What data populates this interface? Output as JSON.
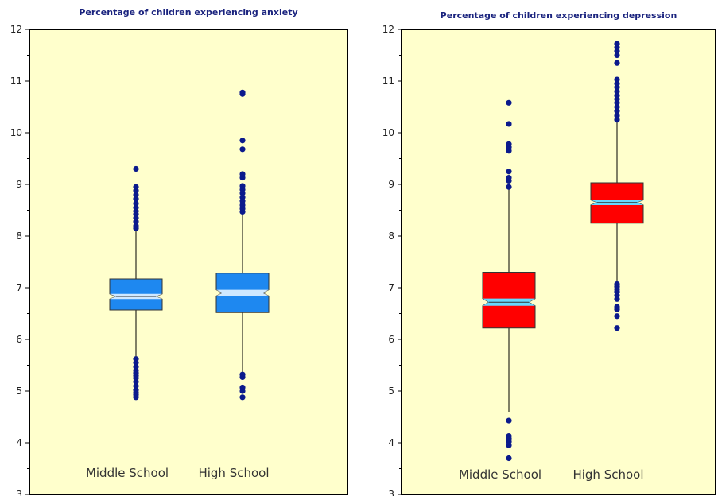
{
  "chart_data": [
    {
      "type": "boxplot",
      "title": "Percentage of children experiencing anxiety",
      "ylim": [
        3,
        12
      ],
      "y_ticks": [
        3,
        4,
        5,
        6,
        7,
        8,
        9,
        10,
        11,
        12
      ],
      "grid": false,
      "plot_background": "#ffffcc",
      "box_color": "#1e88f0",
      "notch_color": "#cfe8ff",
      "categories": [
        "Middle School",
        "High School"
      ],
      "boxes": [
        {
          "name": "Middle School",
          "q1": 6.57,
          "median": 6.83,
          "q3": 7.17,
          "notch_low": 6.78,
          "notch_high": 6.88,
          "whisker_low": 5.65,
          "whisker_high": 8.15,
          "outliers": [
            4.88,
            4.93,
            4.97,
            5.02,
            5.1,
            5.18,
            5.25,
            5.3,
            5.35,
            5.4,
            5.47,
            5.55,
            5.62,
            8.15,
            8.2,
            8.28,
            8.35,
            8.42,
            8.48,
            8.55,
            8.63,
            8.72,
            8.8,
            8.88,
            8.95,
            9.3
          ]
        },
        {
          "name": "High School",
          "q1": 6.52,
          "median": 6.9,
          "q3": 7.28,
          "notch_low": 6.84,
          "notch_high": 6.96,
          "whisker_low": 5.35,
          "whisker_high": 8.45,
          "outliers": [
            4.88,
            5.0,
            5.07,
            5.27,
            5.32,
            8.47,
            8.53,
            8.6,
            8.68,
            8.75,
            8.83,
            8.9,
            8.97,
            9.13,
            9.2,
            9.68,
            9.85,
            10.75,
            10.78
          ]
        }
      ]
    },
    {
      "type": "boxplot",
      "title": "Percentage of children experiencing depression",
      "ylim": [
        3,
        12
      ],
      "y_ticks": [
        3,
        4,
        5,
        6,
        7,
        8,
        9,
        10,
        11,
        12
      ],
      "grid": false,
      "plot_background": "#ffffcc",
      "box_color": "#ff0000",
      "notch_color": "#66d9ff",
      "categories": [
        "Middle School",
        "High School"
      ],
      "boxes": [
        {
          "name": "Middle School",
          "q1": 6.22,
          "median": 6.72,
          "q3": 7.3,
          "notch_low": 6.65,
          "notch_high": 6.79,
          "whisker_low": 4.6,
          "whisker_high": 8.95,
          "outliers": [
            3.7,
            3.95,
            4.02,
            4.08,
            4.13,
            4.43,
            8.95,
            9.07,
            9.13,
            9.25,
            9.65,
            9.72,
            9.78,
            10.17,
            10.58
          ]
        },
        {
          "name": "High School",
          "q1": 8.25,
          "median": 8.65,
          "q3": 9.03,
          "notch_low": 8.6,
          "notch_high": 8.7,
          "whisker_low": 7.1,
          "whisker_high": 10.25,
          "outliers": [
            6.22,
            6.45,
            6.58,
            6.63,
            6.78,
            6.85,
            6.92,
            6.97,
            7.02,
            7.07,
            10.25,
            10.33,
            10.42,
            10.5,
            10.58,
            10.65,
            10.72,
            10.8,
            10.88,
            10.95,
            11.03,
            11.35,
            11.5,
            11.58,
            11.65,
            11.72
          ]
        }
      ]
    }
  ]
}
